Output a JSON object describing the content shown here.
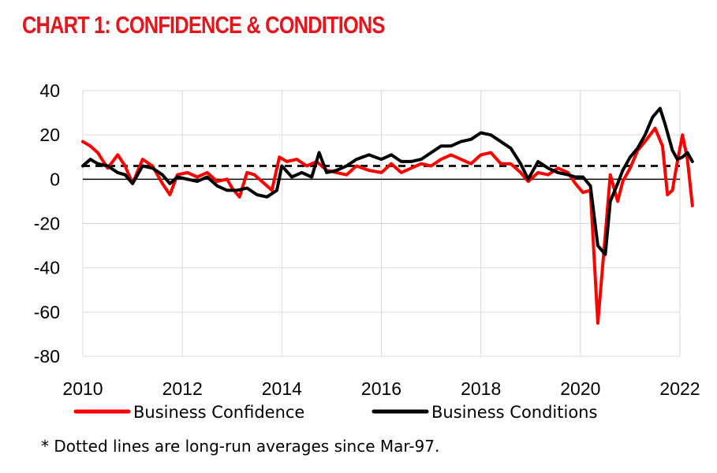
{
  "chart_data": {
    "type": "line",
    "title": "CHART 1: CONFIDENCE & CONDITIONS",
    "footnote": "* Dotted lines are long-run averages since Mar-97.",
    "xlim": [
      2010,
      2022
    ],
    "ylim": [
      -80,
      40
    ],
    "x_ticks": [
      2010,
      2012,
      2014,
      2016,
      2018,
      2020,
      2022
    ],
    "y_ticks": [
      40,
      20,
      0,
      -20,
      -40,
      -60,
      -80
    ],
    "grid": true,
    "legend_position": "bottom",
    "series": [
      {
        "name": "Business Confidence",
        "color": "#ff0000",
        "long_run_average": 6,
        "points": [
          [
            2010.0,
            17
          ],
          [
            2010.15,
            15
          ],
          [
            2010.3,
            12
          ],
          [
            2010.5,
            5
          ],
          [
            2010.7,
            11
          ],
          [
            2010.85,
            6
          ],
          [
            2011.0,
            -2
          ],
          [
            2011.2,
            9
          ],
          [
            2011.4,
            6
          ],
          [
            2011.6,
            -2
          ],
          [
            2011.75,
            -7
          ],
          [
            2011.9,
            2
          ],
          [
            2012.1,
            3
          ],
          [
            2012.3,
            1
          ],
          [
            2012.5,
            3
          ],
          [
            2012.7,
            -1
          ],
          [
            2012.9,
            0
          ],
          [
            2013.0,
            -4
          ],
          [
            2013.15,
            -8
          ],
          [
            2013.3,
            3
          ],
          [
            2013.45,
            2
          ],
          [
            2013.6,
            -1
          ],
          [
            2013.8,
            -5
          ],
          [
            2013.95,
            10
          ],
          [
            2014.1,
            8
          ],
          [
            2014.3,
            9
          ],
          [
            2014.5,
            6
          ],
          [
            2014.7,
            8
          ],
          [
            2014.9,
            4
          ],
          [
            2015.1,
            3
          ],
          [
            2015.3,
            2
          ],
          [
            2015.5,
            6
          ],
          [
            2015.75,
            4
          ],
          [
            2016.0,
            3
          ],
          [
            2016.2,
            7
          ],
          [
            2016.4,
            3
          ],
          [
            2016.6,
            5
          ],
          [
            2016.8,
            7
          ],
          [
            2017.0,
            6
          ],
          [
            2017.2,
            9
          ],
          [
            2017.4,
            11
          ],
          [
            2017.6,
            9
          ],
          [
            2017.8,
            7
          ],
          [
            2018.0,
            11
          ],
          [
            2018.2,
            12
          ],
          [
            2018.4,
            7
          ],
          [
            2018.6,
            7
          ],
          [
            2018.8,
            3
          ],
          [
            2018.95,
            -1
          ],
          [
            2019.15,
            3
          ],
          [
            2019.35,
            2
          ],
          [
            2019.55,
            5
          ],
          [
            2019.75,
            3
          ],
          [
            2019.9,
            -2
          ],
          [
            2020.05,
            -6
          ],
          [
            2020.2,
            -5
          ],
          [
            2020.35,
            -65
          ],
          [
            2020.5,
            -25
          ],
          [
            2020.6,
            2
          ],
          [
            2020.75,
            -10
          ],
          [
            2020.85,
            -1
          ],
          [
            2021.0,
            5
          ],
          [
            2021.15,
            13
          ],
          [
            2021.3,
            17
          ],
          [
            2021.5,
            23
          ],
          [
            2021.65,
            15
          ],
          [
            2021.75,
            -7
          ],
          [
            2021.85,
            -5
          ],
          [
            2021.95,
            8
          ],
          [
            2022.05,
            20
          ],
          [
            2022.15,
            9
          ],
          [
            2022.25,
            -12
          ]
        ]
      },
      {
        "name": "Business Conditions",
        "color": "#000000",
        "long_run_average": 6,
        "points": [
          [
            2010.0,
            6
          ],
          [
            2010.15,
            9
          ],
          [
            2010.3,
            7
          ],
          [
            2010.5,
            6
          ],
          [
            2010.7,
            3
          ],
          [
            2010.85,
            2
          ],
          [
            2011.0,
            -2
          ],
          [
            2011.2,
            6
          ],
          [
            2011.4,
            5
          ],
          [
            2011.6,
            2
          ],
          [
            2011.75,
            -2
          ],
          [
            2011.9,
            1
          ],
          [
            2012.1,
            0
          ],
          [
            2012.3,
            -1
          ],
          [
            2012.5,
            1
          ],
          [
            2012.7,
            -3
          ],
          [
            2012.9,
            -5
          ],
          [
            2013.1,
            -5
          ],
          [
            2013.3,
            -4
          ],
          [
            2013.5,
            -7
          ],
          [
            2013.7,
            -8
          ],
          [
            2013.9,
            -5
          ],
          [
            2014.0,
            6
          ],
          [
            2014.2,
            1
          ],
          [
            2014.4,
            3
          ],
          [
            2014.6,
            1
          ],
          [
            2014.75,
            12
          ],
          [
            2014.9,
            3
          ],
          [
            2015.1,
            4
          ],
          [
            2015.3,
            6
          ],
          [
            2015.5,
            9
          ],
          [
            2015.75,
            11
          ],
          [
            2016.0,
            9
          ],
          [
            2016.2,
            11
          ],
          [
            2016.4,
            8
          ],
          [
            2016.6,
            8
          ],
          [
            2016.8,
            9
          ],
          [
            2017.0,
            12
          ],
          [
            2017.2,
            15
          ],
          [
            2017.4,
            15
          ],
          [
            2017.6,
            17
          ],
          [
            2017.8,
            18
          ],
          [
            2018.0,
            21
          ],
          [
            2018.2,
            20
          ],
          [
            2018.4,
            17
          ],
          [
            2018.6,
            14
          ],
          [
            2018.8,
            7
          ],
          [
            2018.95,
            0
          ],
          [
            2019.15,
            8
          ],
          [
            2019.35,
            5
          ],
          [
            2019.55,
            3
          ],
          [
            2019.75,
            2
          ],
          [
            2019.9,
            1
          ],
          [
            2020.05,
            1
          ],
          [
            2020.2,
            -3
          ],
          [
            2020.35,
            -30
          ],
          [
            2020.5,
            -34
          ],
          [
            2020.6,
            -10
          ],
          [
            2020.75,
            -2
          ],
          [
            2020.85,
            4
          ],
          [
            2021.0,
            10
          ],
          [
            2021.15,
            14
          ],
          [
            2021.3,
            20
          ],
          [
            2021.45,
            28
          ],
          [
            2021.6,
            32
          ],
          [
            2021.7,
            25
          ],
          [
            2021.85,
            13
          ],
          [
            2021.95,
            9
          ],
          [
            2022.05,
            10
          ],
          [
            2022.15,
            12
          ],
          [
            2022.25,
            8
          ]
        ]
      }
    ]
  }
}
